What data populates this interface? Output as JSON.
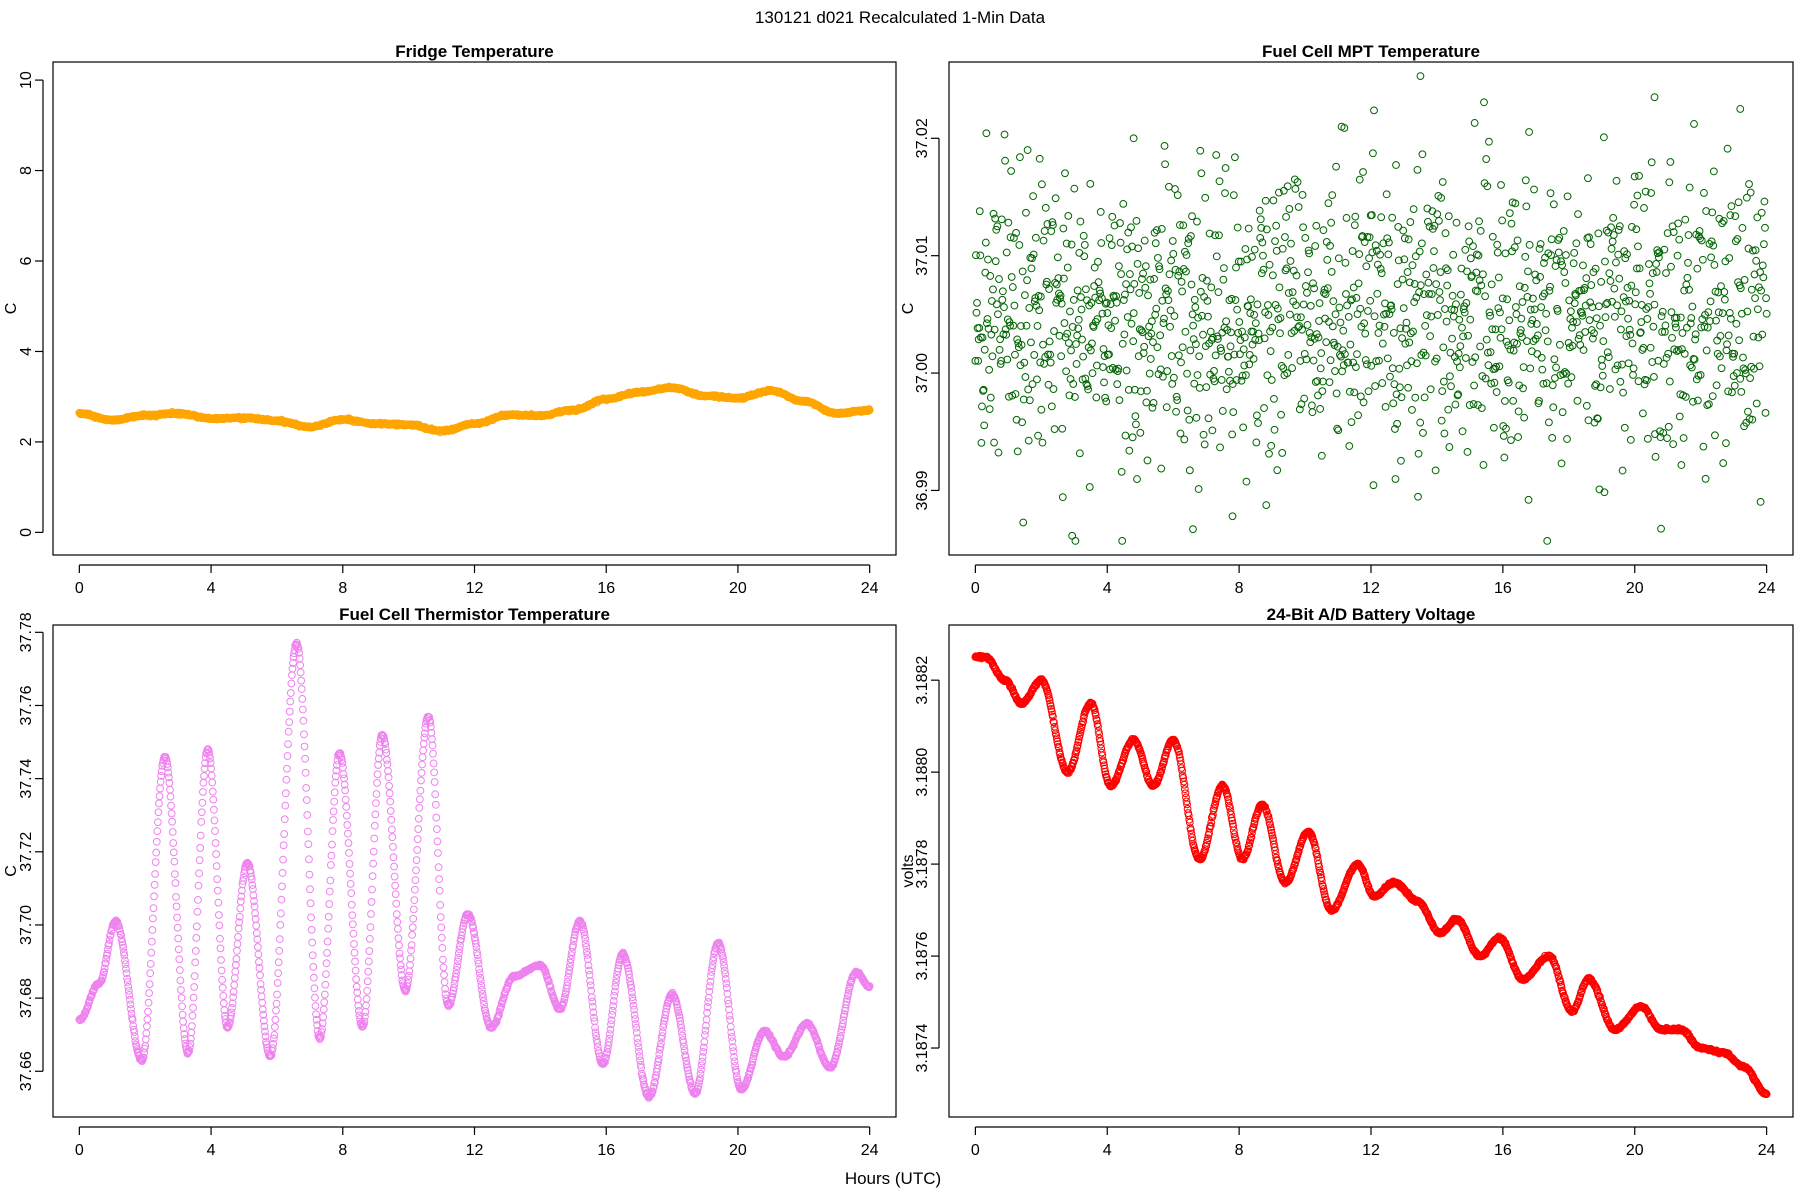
{
  "figure": {
    "title": "130121   d021   Recalculated 1-Min Data",
    "xlabel": "Hours (UTC)"
  },
  "chart_data": [
    {
      "type": "scatter",
      "title": "Fridge Temperature",
      "xlabel": "",
      "ylabel": "C",
      "color": "#FFA500",
      "xlim": [
        -0.8,
        24.8
      ],
      "ylim": [
        -0.5,
        10.4
      ],
      "xticks": [
        0,
        4,
        8,
        12,
        16,
        20,
        24
      ],
      "yticks": [
        0,
        2,
        4,
        6,
        8,
        10
      ],
      "ytick_labels": [
        "0",
        "2",
        "4",
        "6",
        "8",
        "10"
      ],
      "pattern": "dense_line",
      "x": [
        0,
        1,
        2,
        3,
        4,
        5,
        6,
        7,
        8,
        9,
        10,
        11,
        12,
        13,
        14,
        15,
        16,
        17,
        18,
        19,
        20,
        21,
        22,
        23,
        24
      ],
      "values": [
        2.63,
        2.48,
        2.59,
        2.63,
        2.52,
        2.53,
        2.47,
        2.33,
        2.5,
        2.4,
        2.38,
        2.24,
        2.4,
        2.6,
        2.58,
        2.7,
        2.95,
        3.1,
        3.2,
        3.02,
        2.97,
        3.13,
        2.9,
        2.63,
        2.7
      ]
    },
    {
      "type": "scatter",
      "title": "Fuel Cell MPT Temperature",
      "xlabel": "",
      "ylabel": "C",
      "color": "#006400",
      "xlim": [
        -0.8,
        24.8
      ],
      "ylim": [
        36.9845,
        37.0265
      ],
      "xticks": [
        0,
        4,
        8,
        12,
        16,
        20,
        24
      ],
      "yticks": [
        36.99,
        37.0,
        37.01,
        37.02
      ],
      "ytick_labels": [
        "36.99",
        "37.00",
        "37.01",
        "37.02"
      ],
      "pattern": "noise",
      "n_points": 1440,
      "mean": 37.005,
      "spread": 0.0135,
      "highlights": [
        {
          "x": 13.5,
          "y": 37.0253
        },
        {
          "x": 20.6,
          "y": 37.0235
        },
        {
          "x": 23.2,
          "y": 37.0225
        },
        {
          "x": 6.6,
          "y": 36.9867
        },
        {
          "x": 7.8,
          "y": 36.9878
        },
        {
          "x": 4.8,
          "y": 37.02
        }
      ]
    },
    {
      "type": "scatter",
      "title": "Fuel Cell Thermistor Temperature",
      "xlabel": "",
      "ylabel": "C",
      "color": "#EE82EE",
      "xlim": [
        -0.8,
        24.8
      ],
      "ylim": [
        37.6475,
        37.782
      ],
      "xticks": [
        0,
        4,
        8,
        12,
        16,
        20,
        24
      ],
      "yticks": [
        37.66,
        37.68,
        37.7,
        37.72,
        37.74,
        37.76,
        37.78
      ],
      "ytick_labels": [
        "37.66",
        "37.68",
        "37.70",
        "37.72",
        "37.74",
        "37.76",
        "37.78"
      ],
      "pattern": "oscillating",
      "x": [
        0,
        0.6,
        1.1,
        1.9,
        2.6,
        3.3,
        3.9,
        4.5,
        5.1,
        5.8,
        6.6,
        7.3,
        7.9,
        8.6,
        9.2,
        9.9,
        10.6,
        11.2,
        11.8,
        12.5,
        13.2,
        14.0,
        14.6,
        15.2,
        15.9,
        16.5,
        17.3,
        18.0,
        18.7,
        19.4,
        20.1,
        20.8,
        21.4,
        22.1,
        22.8,
        23.6,
        24.0
      ],
      "values": [
        37.674,
        37.684,
        37.701,
        37.663,
        37.746,
        37.665,
        37.748,
        37.672,
        37.717,
        37.664,
        37.777,
        37.669,
        37.747,
        37.672,
        37.752,
        37.682,
        37.757,
        37.678,
        37.703,
        37.672,
        37.686,
        37.689,
        37.677,
        37.701,
        37.662,
        37.692,
        37.653,
        37.681,
        37.654,
        37.695,
        37.655,
        37.671,
        37.664,
        37.673,
        37.661,
        37.687,
        37.683
      ]
    },
    {
      "type": "scatter",
      "title": "24-Bit A/D Battery Voltage",
      "xlabel": "",
      "ylabel": "volts",
      "color": "#FF0000",
      "xlim": [
        -0.8,
        24.8
      ],
      "ylim": [
        3.18725,
        3.18832
      ],
      "xticks": [
        0,
        4,
        8,
        12,
        16,
        20,
        24
      ],
      "yticks": [
        3.1874,
        3.1876,
        3.1878,
        3.188,
        3.1882
      ],
      "ytick_labels": [
        "3.1874",
        "3.1876",
        "3.1878",
        "3.1880",
        "3.1882"
      ],
      "pattern": "oscillating",
      "x": [
        0,
        0.3,
        0.9,
        1.4,
        2.0,
        2.8,
        3.5,
        4.1,
        4.8,
        5.4,
        6.0,
        6.8,
        7.5,
        8.1,
        8.7,
        9.4,
        10.1,
        10.8,
        11.6,
        12.1,
        12.7,
        13.4,
        14.1,
        14.6,
        15.3,
        15.9,
        16.6,
        17.4,
        18.1,
        18.6,
        19.4,
        20.2,
        20.8,
        21.4,
        22.0,
        22.7,
        23.3,
        24.0
      ],
      "values": [
        3.18825,
        3.18825,
        3.1882,
        3.18815,
        3.1882,
        3.188,
        3.18815,
        3.18797,
        3.18807,
        3.18797,
        3.18807,
        3.18781,
        3.18797,
        3.18781,
        3.18793,
        3.18776,
        3.18787,
        3.1877,
        3.1878,
        3.18773,
        3.18776,
        3.18772,
        3.18765,
        3.18768,
        3.1876,
        3.18764,
        3.18755,
        3.1876,
        3.18748,
        3.18755,
        3.18744,
        3.18749,
        3.18744,
        3.18744,
        3.1874,
        3.18739,
        3.18736,
        3.1873
      ]
    }
  ]
}
